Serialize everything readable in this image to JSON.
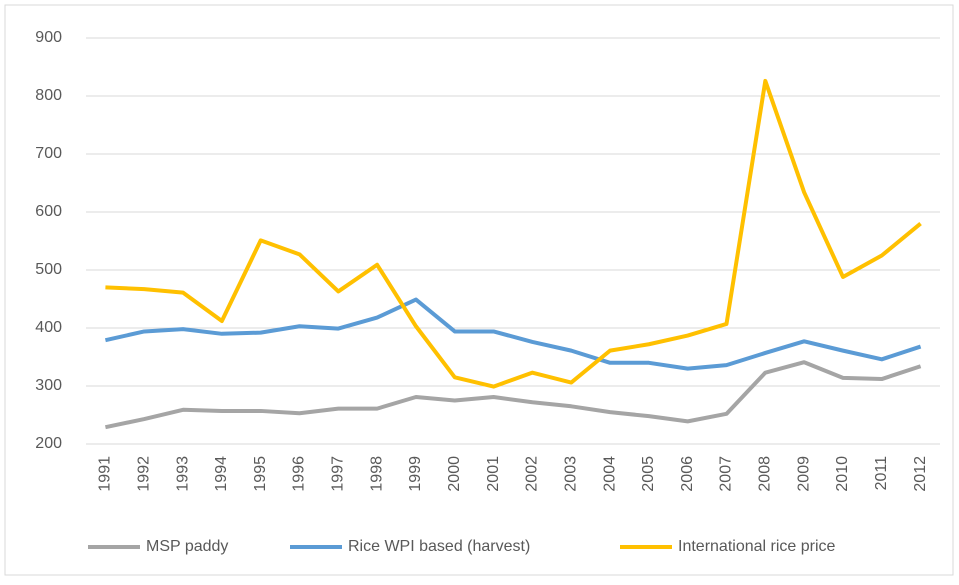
{
  "chart_data": {
    "type": "line",
    "categories": [
      "1991",
      "1992",
      "1993",
      "1994",
      "1995",
      "1996",
      "1997",
      "1998",
      "1999",
      "2000",
      "2001",
      "2002",
      "2003",
      "2004",
      "2005",
      "2006",
      "2007",
      "2008",
      "2009",
      "2010",
      "2011",
      "2012"
    ],
    "series": [
      {
        "name": "MSP paddy",
        "color": "#a5a5a5",
        "values": [
          229,
          243,
          259,
          257,
          257,
          253,
          261,
          261,
          281,
          275,
          281,
          272,
          265,
          255,
          248,
          239,
          252,
          323,
          341,
          314,
          312,
          334
        ]
      },
      {
        "name": "Rice WPI based (harvest)",
        "color": "#5b9bd5",
        "values": [
          379,
          394,
          398,
          390,
          392,
          403,
          399,
          418,
          449,
          394,
          394,
          376,
          361,
          340,
          340,
          330,
          336,
          357,
          377,
          361,
          346,
          368
        ]
      },
      {
        "name": "International rice price",
        "color": "#ffc000",
        "values": [
          470,
          467,
          461,
          412,
          551,
          527,
          463,
          509,
          403,
          315,
          299,
          323,
          306,
          361,
          372,
          387,
          407,
          826,
          634,
          488,
          525,
          580
        ]
      }
    ],
    "ylim": [
      200,
      900
    ],
    "yticks": [
      200,
      300,
      400,
      500,
      600,
      700,
      800,
      900
    ],
    "grid": true,
    "legend": "bottom"
  }
}
